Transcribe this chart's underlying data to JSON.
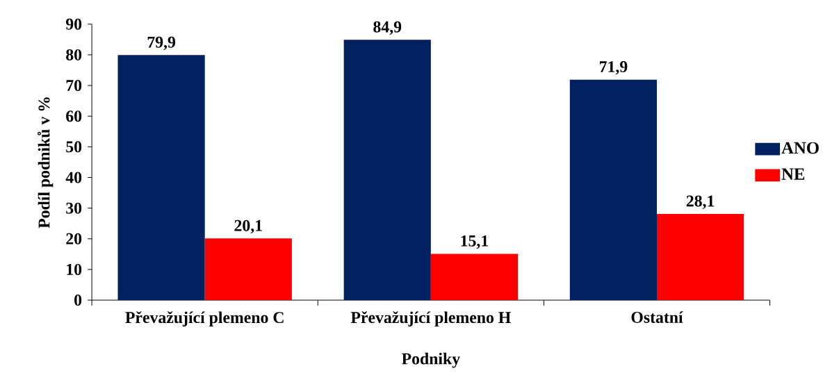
{
  "chart_data": {
    "type": "bar",
    "categories": [
      "Převažující plemeno C",
      "Převažující plemeno H",
      "Ostatní"
    ],
    "series": [
      {
        "name": "ANO",
        "color": "#002060",
        "values": [
          79.9,
          84.9,
          71.9
        ],
        "value_labels": [
          "79,9",
          "84,9",
          "71,9"
        ]
      },
      {
        "name": "NE",
        "color": "#ff0000",
        "values": [
          20.1,
          15.1,
          28.1
        ],
        "value_labels": [
          "20,1",
          "15,1",
          "28,1"
        ]
      }
    ],
    "ylim": [
      0,
      90
    ],
    "yticks": [
      0,
      10,
      20,
      30,
      40,
      50,
      60,
      70,
      80,
      90
    ],
    "xlabel": "Podniky",
    "ylabel": "Podíl podniků v %",
    "legend": "right"
  }
}
